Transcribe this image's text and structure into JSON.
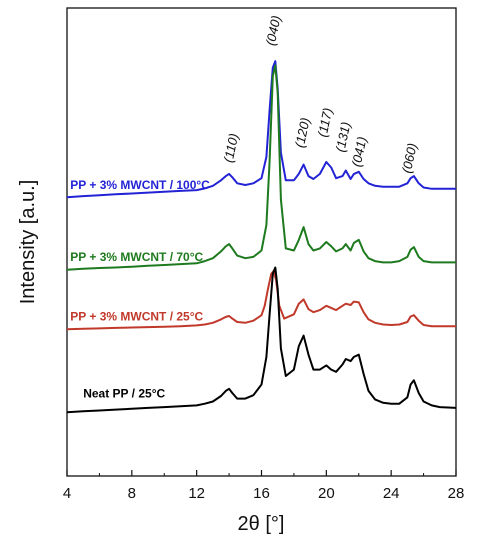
{
  "chart_data": {
    "type": "line",
    "xlabel": "2θ [°]",
    "ylabel": "Intensity [a.u.]",
    "xlim": [
      4,
      28
    ],
    "xticks": [
      4,
      8,
      12,
      16,
      20,
      24,
      28
    ],
    "ylim": [
      0,
      11
    ],
    "yticks_shown": false,
    "grid": false,
    "legend": "none",
    "peak_labels": [
      {
        "text": "(110)",
        "x": 14.2,
        "y": 7.35
      },
      {
        "text": "(040)",
        "x": 16.8,
        "y": 10.1
      },
      {
        "text": "(120)",
        "x": 18.6,
        "y": 7.7
      },
      {
        "text": "(117)",
        "x": 20.0,
        "y": 7.95
      },
      {
        "text": "(131)",
        "x": 21.1,
        "y": 7.6
      },
      {
        "text": "(041)",
        "x": 22.1,
        "y": 7.25
      },
      {
        "text": "(060)",
        "x": 25.2,
        "y": 7.1
      }
    ],
    "series": [
      {
        "name": "PP + 3% MWCNT / 100°C",
        "color": "#2323d6",
        "label_x": 4.2,
        "label_y": 6.75,
        "x": [
          4,
          5,
          6,
          7,
          8,
          9,
          10,
          11,
          12,
          12.5,
          13,
          13.5,
          13.8,
          14,
          14.2,
          14.5,
          15,
          15.5,
          16,
          16.3,
          16.5,
          16.7,
          16.85,
          17,
          17.2,
          17.5,
          18,
          18.3,
          18.6,
          18.9,
          19.2,
          19.6,
          20,
          20.3,
          20.6,
          21,
          21.2,
          21.5,
          21.7,
          22,
          22.3,
          22.6,
          23,
          23.5,
          24,
          24.5,
          25,
          25.2,
          25.4,
          25.7,
          26,
          26.5,
          27,
          28
        ],
        "y": [
          6.55,
          6.58,
          6.6,
          6.62,
          6.64,
          6.66,
          6.68,
          6.7,
          6.72,
          6.76,
          6.82,
          6.95,
          7.05,
          7.1,
          7.02,
          6.88,
          6.84,
          6.88,
          7.0,
          7.5,
          8.6,
          9.6,
          9.75,
          9.1,
          7.6,
          6.95,
          6.95,
          7.1,
          7.32,
          7.05,
          6.98,
          7.1,
          7.38,
          7.25,
          7.0,
          7.05,
          7.18,
          6.98,
          7.1,
          7.15,
          6.98,
          6.88,
          6.82,
          6.8,
          6.8,
          6.8,
          6.88,
          7.0,
          7.05,
          6.88,
          6.78,
          6.75,
          6.75,
          6.75
        ]
      },
      {
        "name": "PP + 3% MWCNT / 70°C",
        "color": "#1e7a1e",
        "label_x": 4.2,
        "label_y": 5.05,
        "x": [
          4,
          5,
          6,
          7,
          8,
          9,
          10,
          11,
          12,
          12.5,
          13,
          13.5,
          13.8,
          14,
          14.2,
          14.5,
          15,
          15.5,
          16,
          16.3,
          16.5,
          16.7,
          16.85,
          17,
          17.2,
          17.5,
          18,
          18.3,
          18.6,
          18.9,
          19.2,
          19.6,
          20,
          20.3,
          20.6,
          21,
          21.2,
          21.5,
          21.7,
          22,
          22.3,
          22.6,
          23,
          23.5,
          24,
          24.5,
          25,
          25.2,
          25.4,
          25.7,
          26,
          26.5,
          27,
          28
        ],
        "y": [
          4.85,
          4.87,
          4.89,
          4.9,
          4.92,
          4.94,
          4.96,
          4.98,
          5.0,
          5.05,
          5.12,
          5.28,
          5.4,
          5.45,
          5.35,
          5.18,
          5.12,
          5.15,
          5.3,
          5.9,
          7.4,
          9.4,
          9.65,
          9.0,
          6.5,
          5.35,
          5.3,
          5.55,
          5.85,
          5.45,
          5.3,
          5.35,
          5.5,
          5.4,
          5.28,
          5.35,
          5.45,
          5.3,
          5.48,
          5.55,
          5.28,
          5.12,
          5.05,
          5.02,
          5.02,
          5.05,
          5.15,
          5.32,
          5.38,
          5.15,
          5.05,
          5.02,
          5.02,
          5.02
        ]
      },
      {
        "name": "PP + 3% MWCNT / 25°C",
        "color": "#c0392b",
        "label_x": 4.2,
        "label_y": 3.65,
        "x": [
          4,
          5,
          6,
          7,
          8,
          9,
          10,
          11,
          12,
          12.5,
          13,
          13.5,
          13.8,
          14,
          14.2,
          14.5,
          15,
          15.5,
          16,
          16.2,
          16.4,
          16.6,
          16.75,
          16.9,
          17.1,
          17.4,
          18,
          18.3,
          18.6,
          18.9,
          19.2,
          19.6,
          20,
          20.3,
          20.6,
          21,
          21.2,
          21.5,
          21.7,
          22,
          22.3,
          22.6,
          23,
          23.5,
          24,
          24.5,
          25,
          25.2,
          25.4,
          25.7,
          26,
          26.5,
          27,
          28
        ],
        "y": [
          3.45,
          3.46,
          3.47,
          3.48,
          3.49,
          3.5,
          3.51,
          3.52,
          3.54,
          3.56,
          3.6,
          3.68,
          3.74,
          3.76,
          3.7,
          3.62,
          3.6,
          3.65,
          3.78,
          4.0,
          4.4,
          4.75,
          4.82,
          4.6,
          4.0,
          3.7,
          3.8,
          4.05,
          4.15,
          3.92,
          3.85,
          3.9,
          4.0,
          3.95,
          3.9,
          4.0,
          4.05,
          4.02,
          4.1,
          4.08,
          3.85,
          3.68,
          3.6,
          3.56,
          3.55,
          3.56,
          3.62,
          3.75,
          3.78,
          3.65,
          3.55,
          3.52,
          3.52,
          3.52
        ]
      },
      {
        "name": "Neat PP / 25°C",
        "color": "#000000",
        "label_x": 5.0,
        "label_y": 1.85,
        "x": [
          4,
          5,
          6,
          7,
          8,
          9,
          10,
          11,
          12,
          12.5,
          13,
          13.5,
          13.8,
          14,
          14.2,
          14.5,
          15,
          15.5,
          16,
          16.3,
          16.5,
          16.7,
          16.85,
          17,
          17.2,
          17.5,
          18,
          18.3,
          18.6,
          18.9,
          19.2,
          19.6,
          20,
          20.3,
          20.6,
          21,
          21.2,
          21.5,
          21.7,
          22,
          22.3,
          22.6,
          23,
          23.5,
          24,
          24.5,
          25,
          25.2,
          25.4,
          25.7,
          26,
          26.5,
          27,
          28
        ],
        "y": [
          1.5,
          1.52,
          1.54,
          1.56,
          1.58,
          1.6,
          1.62,
          1.64,
          1.66,
          1.7,
          1.75,
          1.88,
          2.0,
          2.05,
          1.95,
          1.82,
          1.82,
          1.9,
          2.15,
          2.8,
          3.8,
          4.75,
          4.9,
          4.4,
          3.0,
          2.35,
          2.5,
          3.05,
          3.3,
          2.85,
          2.5,
          2.5,
          2.6,
          2.5,
          2.45,
          2.62,
          2.75,
          2.7,
          2.8,
          2.85,
          2.4,
          2.0,
          1.8,
          1.72,
          1.7,
          1.7,
          1.85,
          2.15,
          2.25,
          1.95,
          1.75,
          1.66,
          1.62,
          1.6
        ]
      }
    ]
  }
}
